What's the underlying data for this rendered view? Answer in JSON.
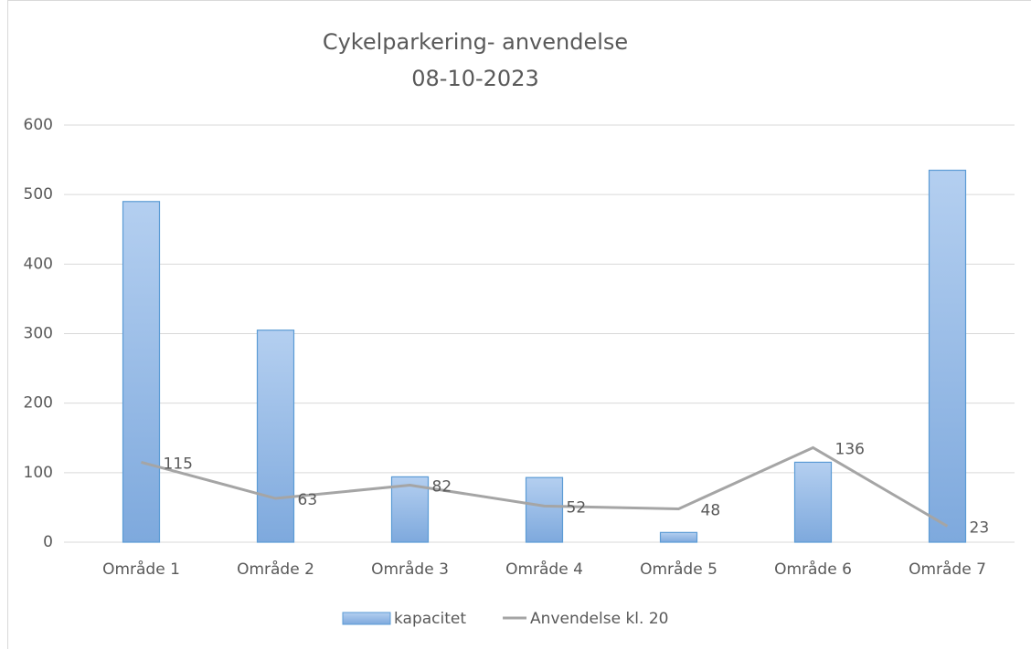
{
  "chart_data": {
    "type": "bar",
    "title": [
      "Cykelparkering- anvendelse",
      "08-10-2023"
    ],
    "categories": [
      "Område 1",
      "Område 2",
      "Område 3",
      "Område 4",
      "Område 5",
      "Område 6",
      "Område 7"
    ],
    "series": [
      {
        "name": "kapacitet",
        "type": "bar",
        "color": "#5b9bd5",
        "values": [
          490,
          305,
          94,
          93,
          14,
          115,
          535
        ]
      },
      {
        "name": "Anvendelse kl. 20",
        "type": "line",
        "color": "#a5a5a5",
        "values": [
          115,
          63,
          82,
          52,
          48,
          136,
          23
        ]
      }
    ],
    "ylim": [
      0,
      600
    ],
    "yticks": [
      0,
      100,
      200,
      300,
      400,
      500,
      600
    ],
    "grid": true,
    "legend": "bottom"
  }
}
